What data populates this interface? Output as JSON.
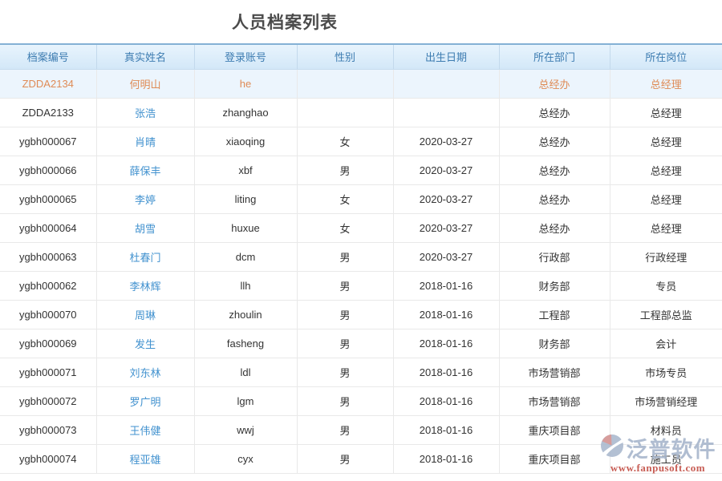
{
  "page": {
    "title": "人员档案列表"
  },
  "table": {
    "columns": [
      {
        "key": "file_no",
        "label": "档案编号"
      },
      {
        "key": "name",
        "label": "真实姓名"
      },
      {
        "key": "account",
        "label": "登录账号"
      },
      {
        "key": "gender",
        "label": "性别"
      },
      {
        "key": "birth_date",
        "label": "出生日期"
      },
      {
        "key": "department",
        "label": "所在部门"
      },
      {
        "key": "position",
        "label": "所在岗位"
      }
    ],
    "rows": [
      {
        "file_no": "ZDDA2134",
        "name": "何明山",
        "account": "he",
        "gender": "",
        "birth_date": "",
        "department": "总经办",
        "position": "总经理",
        "highlighted": true
      },
      {
        "file_no": "ZDDA2133",
        "name": "张浩",
        "account": "zhanghao",
        "gender": "",
        "birth_date": "",
        "department": "总经办",
        "position": "总经理"
      },
      {
        "file_no": "ygbh000067",
        "name": "肖晴",
        "account": "xiaoqing",
        "gender": "女",
        "birth_date": "2020-03-27",
        "department": "总经办",
        "position": "总经理"
      },
      {
        "file_no": "ygbh000066",
        "name": "薛保丰",
        "account": "xbf",
        "gender": "男",
        "birth_date": "2020-03-27",
        "department": "总经办",
        "position": "总经理"
      },
      {
        "file_no": "ygbh000065",
        "name": "李婷",
        "account": "liting",
        "gender": "女",
        "birth_date": "2020-03-27",
        "department": "总经办",
        "position": "总经理"
      },
      {
        "file_no": "ygbh000064",
        "name": "胡雪",
        "account": "huxue",
        "gender": "女",
        "birth_date": "2020-03-27",
        "department": "总经办",
        "position": "总经理"
      },
      {
        "file_no": "ygbh000063",
        "name": "杜春门",
        "account": "dcm",
        "gender": "男",
        "birth_date": "2020-03-27",
        "department": "行政部",
        "position": "行政经理"
      },
      {
        "file_no": "ygbh000062",
        "name": "李林辉",
        "account": "llh",
        "gender": "男",
        "birth_date": "2018-01-16",
        "department": "财务部",
        "position": "专员"
      },
      {
        "file_no": "ygbh000070",
        "name": "周琳",
        "account": "zhoulin",
        "gender": "男",
        "birth_date": "2018-01-16",
        "department": "工程部",
        "position": "工程部总监"
      },
      {
        "file_no": "ygbh000069",
        "name": "发生",
        "account": "fasheng",
        "gender": "男",
        "birth_date": "2018-01-16",
        "department": "财务部",
        "position": "会计"
      },
      {
        "file_no": "ygbh000071",
        "name": "刘东林",
        "account": "ldl",
        "gender": "男",
        "birth_date": "2018-01-16",
        "department": "市场营销部",
        "position": "市场专员"
      },
      {
        "file_no": "ygbh000072",
        "name": "罗广明",
        "account": "lgm",
        "gender": "男",
        "birth_date": "2018-01-16",
        "department": "市场营销部",
        "position": "市场营销经理"
      },
      {
        "file_no": "ygbh000073",
        "name": "王伟健",
        "account": "wwj",
        "gender": "男",
        "birth_date": "2018-01-16",
        "department": "重庆项目部",
        "position": "材料员"
      },
      {
        "file_no": "ygbh000074",
        "name": "程亚雄",
        "account": "cyx",
        "gender": "男",
        "birth_date": "2018-01-16",
        "department": "重庆项目部",
        "position": "施工员"
      }
    ]
  },
  "watermark": {
    "brand": "泛普软件",
    "url": "www.fanpusoft.com"
  },
  "colors": {
    "header_text": "#3d7cb1",
    "header_bg": "#dceefb",
    "header_top_border": "#84b1d5",
    "link_blue": "#4292cf",
    "selected_text": "#df8b55",
    "selected_bg": "#ecf5fd",
    "watermark_url_red": "#c0473d",
    "watermark_gray_blue": "#a6b5cb"
  }
}
